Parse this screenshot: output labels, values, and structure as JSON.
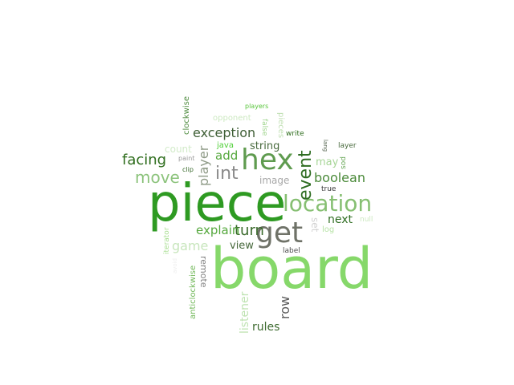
{
  "words": [
    {
      "text": "board",
      "color": "#86d86a"
    },
    {
      "text": "piece",
      "color": "#2e9a22"
    },
    {
      "text": "hex",
      "color": "#5f9b4f"
    },
    {
      "text": "get",
      "color": "#6f7268"
    },
    {
      "text": "location",
      "color": "#86bf72"
    },
    {
      "text": "event",
      "color": "#2f6d22"
    },
    {
      "text": "int",
      "color": "#8a8a8a"
    },
    {
      "text": "move",
      "color": "#8cc37c"
    },
    {
      "text": "facing",
      "color": "#2e6d1d"
    },
    {
      "text": "exception",
      "color": "#3e5e35"
    },
    {
      "text": "boolean",
      "color": "#4b8a3a"
    },
    {
      "text": "turn",
      "color": "#3a6a2c"
    },
    {
      "text": "explain",
      "color": "#55a83d"
    },
    {
      "text": "game",
      "color": "#c8e6bd"
    },
    {
      "text": "player",
      "color": "#8e9a86"
    },
    {
      "text": "add",
      "color": "#56a83e"
    },
    {
      "text": "string",
      "color": "#47693c"
    },
    {
      "text": "next",
      "color": "#2f6d22"
    },
    {
      "text": "view",
      "color": "#47693c"
    },
    {
      "text": "rules",
      "color": "#3e6b30"
    },
    {
      "text": "row",
      "color": "#595959"
    },
    {
      "text": "listener",
      "color": "#bfe3b2"
    },
    {
      "text": "may",
      "color": "#a8d698"
    },
    {
      "text": "image",
      "color": "#a8a8a8"
    },
    {
      "text": "count",
      "color": "#d3ebca"
    },
    {
      "text": "java",
      "color": "#4fcf37"
    },
    {
      "text": "set",
      "color": "#d2d2d2"
    },
    {
      "text": "remote",
      "color": "#7f7f7f"
    },
    {
      "text": "anticlockwise",
      "color": "#72b85a"
    },
    {
      "text": "clockwise",
      "color": "#4f8c40"
    },
    {
      "text": "pieces",
      "color": "#c1e0b4"
    },
    {
      "text": "opponent",
      "color": "#cde9c2"
    },
    {
      "text": "players",
      "color": "#59c63c"
    },
    {
      "text": "false",
      "color": "#a0d58e"
    },
    {
      "text": "write",
      "color": "#2e6d1d"
    },
    {
      "text": "lang",
      "color": "#4f5f4a"
    },
    {
      "text": "layer",
      "color": "#47693c"
    },
    {
      "text": "sod",
      "color": "#6aa859"
    },
    {
      "text": "true",
      "color": "#3a3a3a"
    },
    {
      "text": "null",
      "color": "#cde8c2"
    },
    {
      "text": "log",
      "color": "#b8e3a7"
    },
    {
      "text": "label",
      "color": "#4d4d4d"
    },
    {
      "text": "clip",
      "color": "#3a6a2c"
    },
    {
      "text": "paint",
      "color": "#9b9b9b"
    },
    {
      "text": "iterator",
      "color": "#a7de8f"
    },
    {
      "text": "avoid",
      "color": "#ededed"
    }
  ]
}
